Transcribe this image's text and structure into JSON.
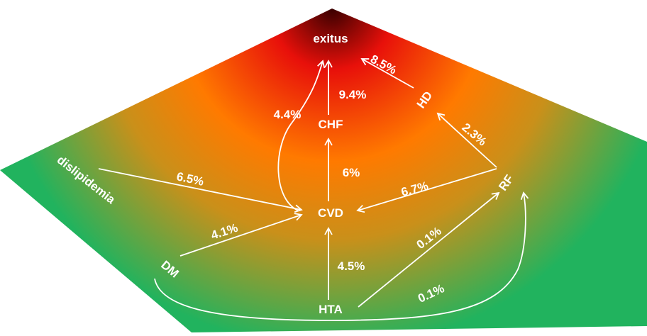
{
  "colors": {
    "top": "#3a0000",
    "red": "#e8100a",
    "orange": "#ff7a00",
    "amber": "#c9901a",
    "green": "#21b35e",
    "text": "#ffffff"
  },
  "nodes": {
    "exitus": "exitus",
    "hd": "HD",
    "chf": "CHF",
    "rf": "RF",
    "cvd": "CVD",
    "dislipidemia": "dislipidemia",
    "dm": "DM",
    "hta": "HTA"
  },
  "edges": {
    "hd_exitus": "8.5%",
    "chf_exitus": "9.4%",
    "cvd_exitus": "4.4%",
    "rf_hd": "2.3%",
    "cvd_chf": "6%",
    "dislip_cvd": "6.5%",
    "rf_cvd": "6.7%",
    "dm_cvd": "4.1%",
    "hta_cvd": "4.5%",
    "hta_rf": "0.1%",
    "dm_rf": "0.1%"
  }
}
